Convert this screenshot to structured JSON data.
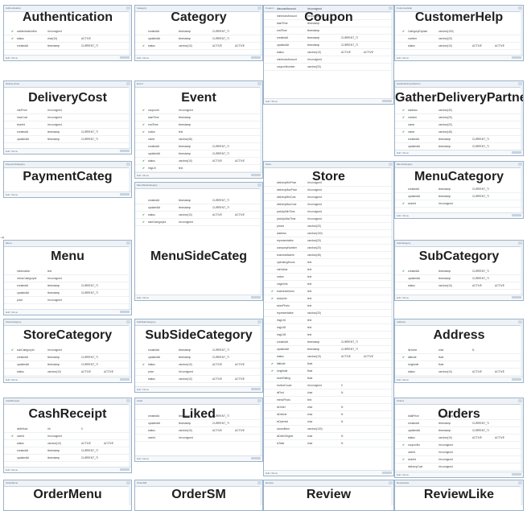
{
  "menu_label": "Edit / Menu",
  "grip_glyph": "⇥",
  "tables": [
    {
      "name": "Authentication",
      "tab": "Authentication",
      "rows": [
        [
          "",
          "✔",
          "authenticationNo",
          "int unsigned",
          "",
          ""
        ],
        [
          "",
          "✔",
          "status",
          "char(10)",
          "ACTIVE",
          ""
        ],
        [
          "",
          "",
          "createdAt",
          "timestamp",
          "CURRENT_TI",
          ""
        ],
        [
          "",
          "",
          "updatedAt",
          "timestamp",
          "CURRENT_TI",
          ""
        ]
      ]
    },
    {
      "name": "Category",
      "tab": "Category",
      "rows": [
        [
          "",
          "",
          "createdAt",
          "timestamp",
          "CURRENT_TI",
          ""
        ],
        [
          "",
          "",
          "updatedAt",
          "timestamp",
          "CURRENT_TI",
          ""
        ],
        [
          "",
          "✔",
          "status",
          "varchar(10)",
          "ACTIVE",
          "ACTIVE"
        ],
        [
          "",
          "",
          "imgUrl",
          "text",
          "",
          ""
        ]
      ]
    },
    {
      "name": "Coupon",
      "tab": "Coupon",
      "rows": [
        [
          "",
          "",
          "discountAmount",
          "int unsigned",
          "",
          ""
        ],
        [
          "",
          "",
          "minimumAmount",
          "int unsigned",
          "",
          ""
        ],
        [
          "",
          "",
          "startTime",
          "timestamp",
          "",
          ""
        ],
        [
          "",
          "",
          "endTime",
          "timestamp",
          "",
          ""
        ],
        [
          "",
          "",
          "createdAt",
          "timestamp",
          "CURRENT_TI",
          ""
        ],
        [
          "",
          "",
          "updatedAt",
          "timestamp",
          "CURRENT_TI",
          ""
        ],
        [
          "",
          "",
          "status",
          "varchar(10)",
          "ACTIVE",
          "ACTIVE"
        ],
        [
          "",
          "",
          "minimumAmount",
          "int unsigned",
          "",
          ""
        ],
        [
          "",
          "",
          "couponNumber",
          "varchar(20)",
          "",
          ""
        ]
      ]
    },
    {
      "name": "CustomerHelp",
      "tab": "CustomerHelp",
      "rows": [
        [
          "",
          "✔",
          "CategoryExplain",
          "varchar(100)",
          "",
          ""
        ],
        [
          "",
          "",
          "number",
          "varchar(20)",
          "",
          ""
        ],
        [
          "",
          "",
          "status",
          "varchar(10)",
          "ACTIVE",
          "ACTIVE"
        ]
      ]
    },
    {
      "name": "DeliveryCost",
      "tab": "DeliveryCost",
      "rows": [
        [
          "",
          "",
          "minPrice",
          "int unsigned",
          "",
          ""
        ],
        [
          "",
          "",
          "maxCost",
          "int unsigned",
          "",
          ""
        ],
        [
          "",
          "",
          "storeId",
          "int unsigned",
          "",
          ""
        ],
        [
          "",
          "",
          "createdAt",
          "timestamp",
          "CURRENT_TI",
          ""
        ],
        [
          "",
          "",
          "updatedAt",
          "timestamp",
          "CURRENT_TI",
          ""
        ]
      ]
    },
    {
      "name": "Event",
      "tab": "Event",
      "rows": [
        [
          "",
          "✔",
          "couponId",
          "int unsigned",
          "",
          ""
        ],
        [
          "",
          "",
          "startTime",
          "timestamp",
          "",
          ""
        ],
        [
          "",
          "✔",
          "endTime",
          "timestamp",
          "",
          ""
        ],
        [
          "",
          "✔",
          "notice",
          "text",
          "",
          ""
        ],
        [
          "",
          "",
          "name",
          "varchar(45)",
          "",
          ""
        ],
        [
          "",
          "",
          "createdAt",
          "timestamp",
          "CURRENT_TI",
          ""
        ],
        [
          "",
          "",
          "updatedAt",
          "timestamp",
          "CURRENT_TI",
          ""
        ],
        [
          "",
          "✔",
          "status",
          "varchar(10)",
          "ACTIVE",
          "ACTIVE"
        ],
        [
          "",
          "✔",
          "imgUrl",
          "text",
          "",
          ""
        ]
      ]
    },
    {
      "name": "GatherDeliveryPartner",
      "tab": "GatherDeliveryPartner",
      "rows": [
        [
          "",
          "✔",
          "address",
          "varchar(30)",
          "",
          ""
        ],
        [
          "",
          "✔",
          "number",
          "varchar(20)",
          "",
          ""
        ],
        [
          "",
          "",
          "name",
          "varchar(20)",
          "",
          ""
        ],
        [
          "",
          "✔",
          "name",
          "varchar(45)",
          "",
          ""
        ],
        [
          "",
          "",
          "createdAt",
          "timestamp",
          "CURRENT_TI",
          ""
        ],
        [
          "",
          "",
          "updatedAt",
          "timestamp",
          "CURRENT_TI",
          ""
        ],
        [
          "",
          "",
          "status",
          "varchar(10)",
          "ACTIVE",
          "ACTIVE"
        ]
      ]
    },
    {
      "name": "PaymentCateg",
      "tab": "PaymentCategory",
      "rows": []
    },
    {
      "name": "Store",
      "tab": "Store",
      "rows": [
        [
          "",
          "",
          "deliveryMinPrice",
          "int unsigned",
          "",
          ""
        ],
        [
          "",
          "",
          "deliveryMaxPrice",
          "int unsigned",
          "",
          ""
        ],
        [
          "",
          "",
          "deliveryMinCost",
          "int unsigned",
          "",
          ""
        ],
        [
          "",
          "",
          "deliveryMaxCost",
          "int unsigned",
          "",
          ""
        ],
        [
          "",
          "",
          "pickUpMinTime",
          "int unsigned",
          "",
          ""
        ],
        [
          "",
          "",
          "pickUpMaxTime",
          "int unsigned",
          "",
          ""
        ],
        [
          "",
          "",
          "phone",
          "varchar(20)",
          "",
          ""
        ],
        [
          "",
          "",
          "address",
          "varchar(100)",
          "",
          ""
        ],
        [
          "",
          "",
          "representative",
          "varchar(20)",
          "",
          ""
        ],
        [
          "",
          "",
          "companyNumber",
          "varchar(20)",
          "",
          ""
        ],
        [
          "",
          "",
          "businessName",
          "varchar(45)",
          "",
          ""
        ],
        [
          "",
          "",
          "operatingHours",
          "text",
          "",
          ""
        ],
        [
          "",
          "",
          "minValue",
          "text",
          "",
          ""
        ],
        [
          "",
          "",
          "notice",
          "text",
          "",
          ""
        ],
        [
          "",
          "",
          "originInfo",
          "text",
          "",
          ""
        ],
        [
          "",
          "✔",
          "businessHours",
          "text",
          "",
          ""
        ],
        [
          "",
          "✔",
          "storyInfo",
          "text",
          "",
          ""
        ],
        [
          "",
          "",
          "storePhoto",
          "text",
          "",
          ""
        ],
        [
          "",
          "",
          "representative",
          "varchar(20)",
          "",
          ""
        ],
        [
          "",
          "",
          "imgUrl1",
          "text",
          "",
          ""
        ],
        [
          "",
          "",
          "imgUrl2",
          "text",
          "",
          ""
        ],
        [
          "",
          "",
          "imgUrl3",
          "text",
          "",
          ""
        ],
        [
          "",
          "",
          "createdAt",
          "timestamp",
          "CURRENT_TI",
          ""
        ],
        [
          "",
          "",
          "updatedAt",
          "timestamp",
          "CURRENT_TI",
          ""
        ],
        [
          "",
          "",
          "status",
          "varchar(10)",
          "ACTIVE",
          "ACTIVE"
        ],
        [
          "",
          "✔",
          "latitude",
          "float",
          "",
          ""
        ],
        [
          "",
          "✔",
          "longitude",
          "float",
          "",
          ""
        ],
        [
          "",
          "",
          "storeRating",
          "float",
          "",
          ""
        ],
        [
          "",
          "",
          "reviewCount",
          "int unsigned",
          "0",
          ""
        ],
        [
          "",
          "",
          "isFirst",
          "char",
          "N",
          ""
        ],
        [
          "",
          "",
          "menuPhoto",
          "text",
          "",
          ""
        ],
        [
          "",
          "",
          "isOrder",
          "char",
          "N",
          ""
        ],
        [
          "",
          "",
          "isDeliver",
          "char",
          "N",
          ""
        ],
        [
          "",
          "",
          "isOpened",
          "char",
          "N",
          ""
        ],
        [
          "",
          "",
          "closedItem",
          "varchar(100)",
          "",
          ""
        ],
        [
          "",
          "",
          "isDelivOrigine",
          "char",
          "N",
          ""
        ],
        [
          "",
          "",
          "isTake",
          "char",
          "N",
          ""
        ]
      ]
    },
    {
      "name": "MenuCategory",
      "tab": "MenuCategory",
      "rows": [
        [
          "",
          "",
          "createdAt",
          "timestamp",
          "CURRENT_TI",
          ""
        ],
        [
          "",
          "",
          "updatedAt",
          "timestamp",
          "CURRENT_TI",
          ""
        ],
        [
          "",
          "✔",
          "storeId",
          "int unsigned",
          "",
          ""
        ],
        [
          "",
          "",
          "status",
          "varchar(10)",
          "ACTIVE",
          "ACTIVE"
        ]
      ]
    },
    {
      "name": "Menu",
      "tab": "Menu",
      "rows": [
        [
          "",
          "",
          "information",
          "text",
          "",
          ""
        ],
        [
          "",
          "",
          "menuCategoryId",
          "int unsigned",
          "",
          ""
        ],
        [
          "",
          "",
          "createdAt",
          "timestamp",
          "CURRENT_TI",
          ""
        ],
        [
          "",
          "",
          "updatedAt",
          "timestamp",
          "CURRENT_TI",
          ""
        ],
        [
          "",
          "",
          "price",
          "int unsigned",
          "",
          ""
        ],
        [
          "",
          "",
          "imgUrl",
          "text",
          "",
          ""
        ],
        [
          "",
          "",
          "status",
          "varchar(10)",
          "ACTIVE",
          "ACTIVE"
        ]
      ]
    },
    {
      "name": "MenuSideCateg",
      "tab": "MenuSideCategory",
      "rows": [
        [
          "",
          "",
          "createdAt",
          "timestamp",
          "CURRENT_TI",
          ""
        ],
        [
          "",
          "",
          "updatedAt",
          "timestamp",
          "CURRENT_TI",
          ""
        ],
        [
          "",
          "✔",
          "status",
          "varchar(10)",
          "ACTIVE",
          "ACTIVE"
        ],
        [
          "",
          "✔",
          "sideCategoryId",
          "int unsigned",
          "",
          ""
        ]
      ]
    },
    {
      "name": "SubCategory",
      "tab": "SubCategory",
      "rows": [
        [
          "",
          "✔",
          "createdAt",
          "timestamp",
          "CURRENT_TI",
          ""
        ],
        [
          "",
          "",
          "updatedAt",
          "timestamp",
          "CURRENT_TI",
          ""
        ],
        [
          "",
          "",
          "status",
          "varchar(10)",
          "ACTIVE",
          "ACTIVE"
        ],
        [
          "",
          "",
          "categoryId",
          "int unsigned",
          "",
          ""
        ]
      ]
    },
    {
      "name": "StoreCategory",
      "tab": "StoreCategory",
      "rows": [
        [
          "",
          "✔",
          "subCategoryId",
          "int unsigned",
          "",
          ""
        ],
        [
          "",
          "",
          "createdAt",
          "timestamp",
          "CURRENT_TI",
          ""
        ],
        [
          "",
          "",
          "updatedAt",
          "timestamp",
          "CURRENT_TI",
          ""
        ],
        [
          "",
          "",
          "status",
          "varchar(10)",
          "ACTIVE",
          "ACTIVE"
        ]
      ]
    },
    {
      "name": "SubSideCategory",
      "tab": "SubSideCategory",
      "rows": [
        [
          "",
          "",
          "createdAt",
          "timestamp",
          "CURRENT_TI",
          ""
        ],
        [
          "",
          "",
          "updatedAt",
          "timestamp",
          "CURRENT_TI",
          ""
        ],
        [
          "",
          "✔",
          "status",
          "varchar(10)",
          "ACTIVE",
          "ACTIVE"
        ],
        [
          "",
          "",
          "price",
          "int unsigned",
          "",
          ""
        ],
        [
          "",
          "",
          "status",
          "varchar(10)",
          "ACTIVE",
          "ACTIVE"
        ]
      ]
    },
    {
      "name": "Address",
      "tab": "Address",
      "rows": [
        [
          "",
          "",
          "isHome",
          "char",
          "N",
          ""
        ],
        [
          "",
          "✔",
          "latitude",
          "float",
          "",
          ""
        ],
        [
          "",
          "",
          "longitude",
          "float",
          "",
          ""
        ],
        [
          "",
          "",
          "status",
          "varchar(10)",
          "ACTIVE",
          "ACTIVE"
        ]
      ]
    },
    {
      "name": "CashReceipt",
      "tab": "CashReceipt",
      "rows": [
        [
          "",
          "",
          "isMethod",
          "int",
          "0",
          ""
        ],
        [
          "",
          "✔",
          "userId",
          "int unsigned",
          "",
          ""
        ],
        [
          "",
          "",
          "status",
          "varchar(10)",
          "ACTIVE",
          "ACTIVE"
        ],
        [
          "",
          "",
          "createdAt",
          "timestamp",
          "CURRENT_TI",
          ""
        ],
        [
          "",
          "",
          "updatedAt",
          "timestamp",
          "CURRENT_TI",
          ""
        ]
      ]
    },
    {
      "name": "Liked",
      "tab": "Liked",
      "rows": [
        [
          "",
          "",
          "createdAt",
          "timestamp",
          "CURRENT_TI",
          ""
        ],
        [
          "",
          "",
          "updatedAt",
          "timestamp",
          "CURRENT_TI",
          ""
        ],
        [
          "",
          "",
          "status",
          "varchar(10)",
          "ACTIVE",
          "ACTIVE"
        ],
        [
          "",
          "",
          "userId",
          "int unsigned",
          "",
          ""
        ]
      ]
    },
    {
      "name": "Orders",
      "tab": "Orders",
      "rows": [
        [
          "",
          "",
          "totalPrice",
          "int unsigned",
          "",
          ""
        ],
        [
          "",
          "",
          "createdAt",
          "timestamp",
          "CURRENT_TI",
          ""
        ],
        [
          "",
          "",
          "updatedAt",
          "timestamp",
          "CURRENT_TI",
          ""
        ],
        [
          "",
          "",
          "status",
          "varchar(10)",
          "ACTIVE",
          "ACTIVE"
        ],
        [
          "",
          "✔",
          "couponNo",
          "int unsigned",
          "",
          ""
        ],
        [
          "",
          "",
          "userId",
          "int unsigned",
          "",
          ""
        ],
        [
          "",
          "✔",
          "storeId",
          "int unsigned",
          "",
          ""
        ],
        [
          "",
          "",
          "deliveryCost",
          "int unsigned",
          "",
          ""
        ]
      ]
    },
    {
      "name": "OrderMenu",
      "tab": "OrderMenu",
      "rows": []
    },
    {
      "name": "OrderSM",
      "tab": "OrderSM",
      "rows": []
    },
    {
      "name": "Review",
      "tab": "Review",
      "rows": []
    },
    {
      "name": "ReviewLike",
      "tab": "ReviewLike",
      "rows": []
    }
  ]
}
